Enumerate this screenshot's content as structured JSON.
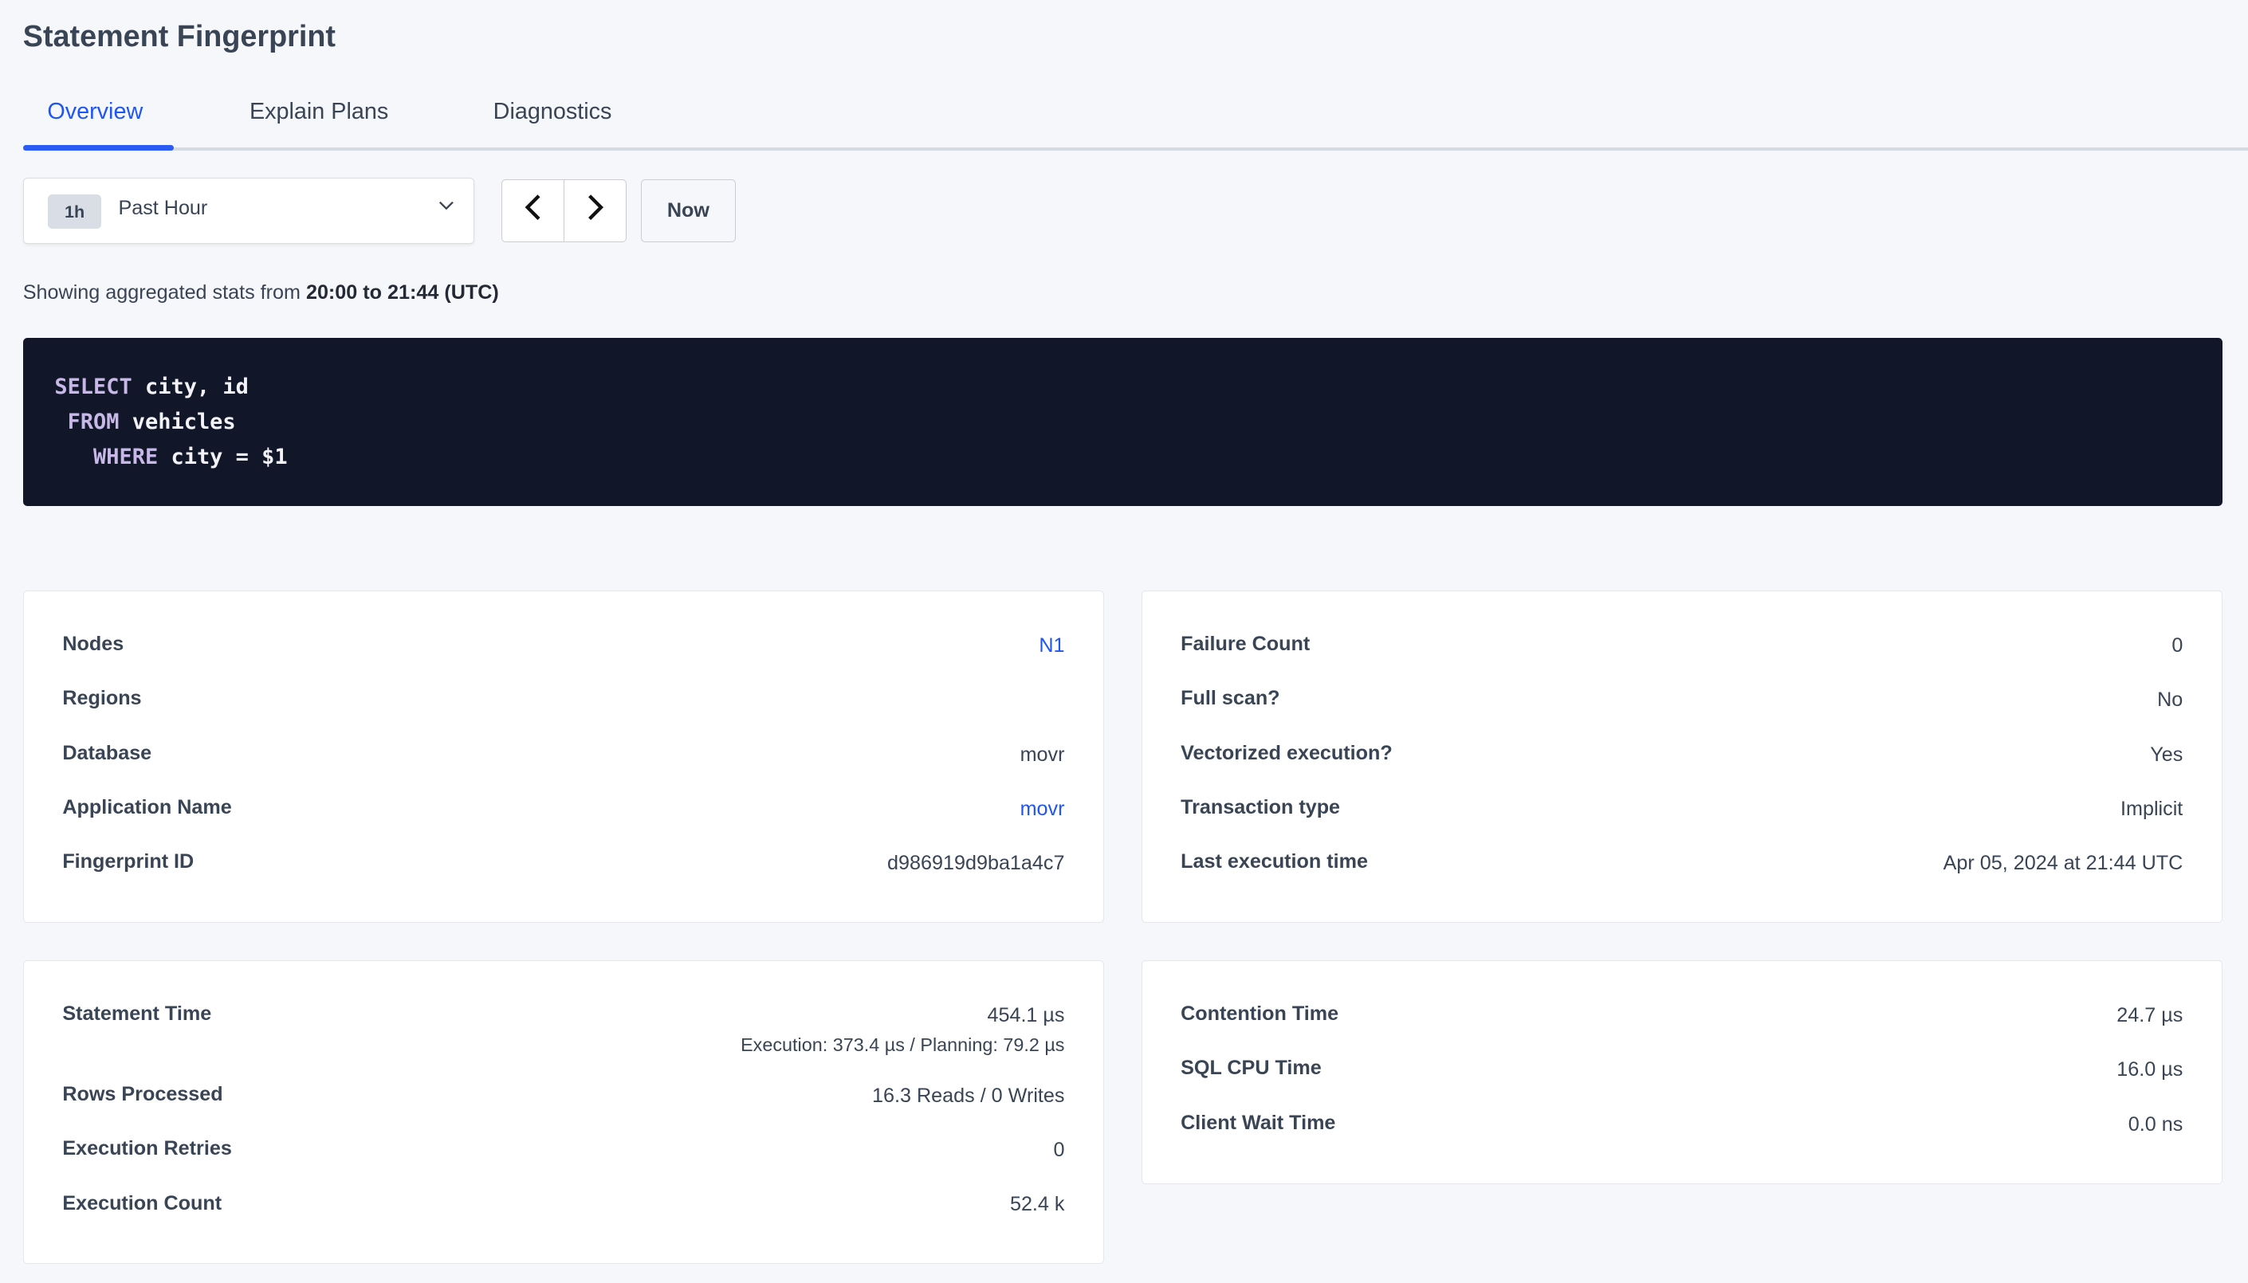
{
  "title": "Statement Fingerprint",
  "tabs": [
    {
      "label": "Overview",
      "active": true
    },
    {
      "label": "Explain Plans",
      "active": false
    },
    {
      "label": "Diagnostics",
      "active": false
    }
  ],
  "time_range": {
    "badge": "1h",
    "label": "Past Hour",
    "prev_icon": "chevron-left-icon",
    "next_icon": "chevron-right-icon",
    "now_label": "Now"
  },
  "showing": {
    "prefix": "Showing aggregated stats from ",
    "range": "20:00 to 21:44 (UTC)"
  },
  "sql": {
    "lines": [
      {
        "indent": "",
        "keyword": "SELECT",
        "rest": " city, id"
      },
      {
        "indent": " ",
        "keyword": "FROM",
        "rest": " vehicles"
      },
      {
        "indent": "   ",
        "keyword": "WHERE",
        "rest": " city = $1"
      }
    ]
  },
  "card1": [
    {
      "label": "Nodes",
      "value": "N1",
      "link": true
    },
    {
      "label": "Regions",
      "value": ""
    },
    {
      "label": "Database",
      "value": "movr"
    },
    {
      "label": "Application Name",
      "value": "movr",
      "link": true
    },
    {
      "label": "Fingerprint ID",
      "value": "d986919d9ba1a4c7"
    }
  ],
  "card2": [
    {
      "label": "Failure Count",
      "value": "0"
    },
    {
      "label": "Full scan?",
      "value": "No"
    },
    {
      "label": "Vectorized execution?",
      "value": "Yes"
    },
    {
      "label": "Transaction type",
      "value": "Implicit"
    },
    {
      "label": "Last execution time",
      "value": "Apr 05, 2024 at 21:44 UTC"
    }
  ],
  "card3": [
    {
      "label": "Statement Time",
      "value": "454.1 µs",
      "sub": "Execution: 373.4 µs / Planning: 79.2 µs"
    },
    {
      "label": "Rows Processed",
      "value": "16.3 Reads / 0 Writes"
    },
    {
      "label": "Execution Retries",
      "value": "0"
    },
    {
      "label": "Execution Count",
      "value": "52.4 k"
    }
  ],
  "card4": [
    {
      "label": "Contention Time",
      "value": "24.7 µs"
    },
    {
      "label": "SQL CPU Time",
      "value": "16.0 µs"
    },
    {
      "label": "Client Wait Time",
      "value": "0.0 ns"
    }
  ]
}
